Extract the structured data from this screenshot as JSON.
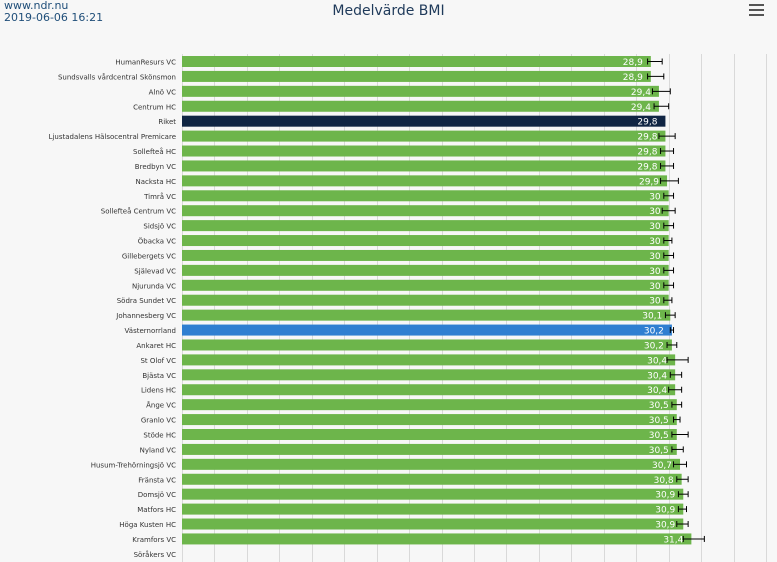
{
  "header": {
    "source": "www.ndr.nu",
    "timestamp": "2019-06-06 16:21",
    "menu_icon": "hamburger-menu-icon"
  },
  "colors": {
    "default_bar": "#6db54b",
    "riket_bar": "#102543",
    "region_bar": "#2f7fd1",
    "error_bar": "#000000",
    "grid": "#d9d9d9",
    "label_text": "#333333"
  },
  "chart_data": {
    "type": "bar",
    "orientation": "horizontal",
    "title": "Medelvärde BMI",
    "xlabel": "",
    "ylabel": "",
    "xlim": [
      0,
      36
    ],
    "grid": true,
    "categories": [
      "HumanResurs VC",
      "Sundsvalls vårdcentral Skönsmon",
      "Alnö VC",
      "Centrum HC",
      "Riket",
      "Ljustadalens Hälsocentral Premicare",
      "Sollefteå HC",
      "Bredbyn VC",
      "Nacksta HC",
      "Timrå VC",
      "Sollefteå Centrum VC",
      "Sidsjö VC",
      "Öbacka VC",
      "Gillebergets VC",
      "Själevad VC",
      "Njurunda VC",
      "Södra Sundet VC",
      "Johannesberg VC",
      "Västernorrland",
      "Ankaret HC",
      "St Olof VC",
      "Bjästa VC",
      "Lidens HC",
      "Ånge VC",
      "Granlo VC",
      "Stöde HC",
      "Nyland VC",
      "Husum-Trehörningsjö VC",
      "Fränsta VC",
      "Domsjö VC",
      "Matfors HC",
      "Höga Kusten HC",
      "Kramfors VC",
      "Söråkers VC"
    ],
    "values": [
      28.9,
      28.9,
      29.4,
      29.4,
      29.8,
      29.8,
      29.8,
      29.8,
      29.9,
      30,
      30,
      30,
      30,
      30,
      30,
      30,
      30,
      30.1,
      30.2,
      30.2,
      30.4,
      30.4,
      30.4,
      30.5,
      30.5,
      30.5,
      30.5,
      30.7,
      30.8,
      30.9,
      30.9,
      30.9,
      31.4,
      null
    ],
    "data_labels": [
      "28,9",
      "28,9",
      "29,4",
      "29,4",
      "29,8",
      "29,8",
      "29,8",
      "29,8",
      "29,9",
      "30",
      "30",
      "30",
      "30",
      "30",
      "30",
      "30",
      "30",
      "30,1",
      "30,2",
      "30,2",
      "30,4",
      "30,4",
      "30,4",
      "30,5",
      "30,5",
      "30,5",
      "30,5",
      "30,7",
      "30,8",
      "30,9",
      "30,9",
      "30,9",
      "31,4",
      ""
    ],
    "error_bars": [
      [
        28.7,
        29.6
      ],
      [
        28.7,
        29.7
      ],
      [
        29.0,
        30.1
      ],
      [
        29.1,
        30.0
      ],
      [
        29.8,
        29.8
      ],
      [
        29.4,
        30.4
      ],
      [
        29.5,
        30.3
      ],
      [
        29.5,
        30.3
      ],
      [
        29.5,
        30.6
      ],
      [
        29.7,
        30.3
      ],
      [
        29.6,
        30.4
      ],
      [
        29.7,
        30.3
      ],
      [
        29.7,
        30.2
      ],
      [
        29.7,
        30.3
      ],
      [
        29.7,
        30.3
      ],
      [
        29.7,
        30.3
      ],
      [
        29.7,
        30.2
      ],
      [
        29.8,
        30.4
      ],
      [
        30.1,
        30.3
      ],
      [
        29.9,
        30.5
      ],
      [
        29.9,
        31.2
      ],
      [
        30.1,
        30.8
      ],
      [
        30.0,
        30.8
      ],
      [
        30.2,
        30.8
      ],
      [
        30.3,
        30.7
      ],
      [
        30.2,
        31.2
      ],
      [
        30.2,
        30.9
      ],
      [
        30.3,
        31.1
      ],
      [
        30.5,
        31.2
      ],
      [
        30.6,
        31.2
      ],
      [
        30.6,
        31.1
      ],
      [
        30.5,
        31.2
      ],
      [
        30.9,
        32.2
      ],
      null
    ],
    "highlights": {
      "Riket": "riket_bar",
      "Västernorrland": "region_bar"
    }
  }
}
